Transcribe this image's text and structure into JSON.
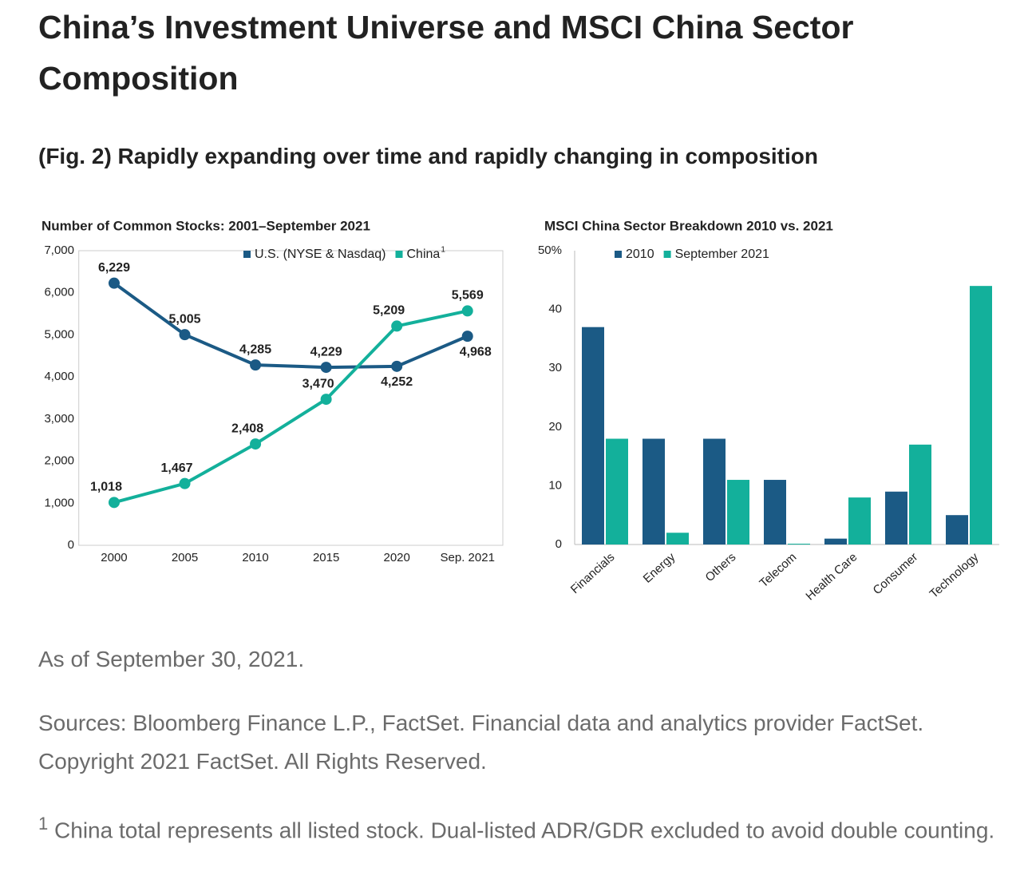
{
  "header": {
    "title": "China’s Investment Universe and MSCI China Sector Composition",
    "subtitle": "(Fig. 2) Rapidly expanding over time and rapidly changing in composition"
  },
  "chart_data": [
    {
      "type": "line",
      "title": "Number of Common Stocks: 2001–September 2021",
      "categories": [
        "2000",
        "2005",
        "2010",
        "2015",
        "2020",
        "Sep. 2021"
      ],
      "series": [
        {
          "name": "U.S. (NYSE & Nasdaq)",
          "color": "#1b5a85",
          "values": [
            6229,
            5005,
            4285,
            4229,
            4252,
            4968
          ],
          "value_labels": [
            "6,229",
            "5,005",
            "4,285",
            "4,229",
            "4,252",
            "4,968"
          ]
        },
        {
          "name": "China",
          "footnote_ref": "1",
          "color": "#13b09b",
          "values": [
            1018,
            1467,
            2408,
            3470,
            5209,
            5569
          ],
          "value_labels": [
            "1,018",
            "1,467",
            "2,408",
            "3,470",
            "5,209",
            "5,569"
          ]
        }
      ],
      "ylim": [
        0,
        7000
      ],
      "yticks": [
        0,
        {
          "value": 1000,
          "label": "1,000"
        },
        {
          "value": 2000,
          "label": "2,000"
        },
        {
          "value": 3000,
          "label": "3,000"
        },
        {
          "value": 4000,
          "label": "4,000"
        },
        {
          "value": 5000,
          "label": "5,000"
        },
        {
          "value": 6000,
          "label": "6,000"
        },
        {
          "value": 7000,
          "label": "7,000"
        }
      ]
    },
    {
      "type": "bar",
      "title": "MSCI China Sector Breakdown 2010 vs. 2021",
      "categories": [
        "Financials",
        "Energy",
        "Others",
        "Telecom",
        "Health Care",
        "Consumer",
        "Technology"
      ],
      "series": [
        {
          "name": "2010",
          "color": "#1b5a85",
          "values": [
            37,
            18,
            18,
            11,
            1,
            9,
            5
          ]
        },
        {
          "name": "September 2021",
          "color": "#13b09b",
          "values": [
            18,
            2,
            11,
            0,
            8,
            17,
            44
          ]
        }
      ],
      "ylim": [
        0,
        50
      ],
      "yticks": [
        0,
        10,
        20,
        30,
        40,
        {
          "value": 50,
          "label": "50%"
        }
      ]
    }
  ],
  "notes": {
    "as_of": "As of September 30, 2021.",
    "sources": "Sources: Bloomberg Finance L.P., FactSet. Financial data and analytics provider FactSet. Copyright 2021 FactSet. All Rights Reserved.",
    "footnote_mark": "1",
    "footnote": "China total represents all listed stock. Dual-listed ADR/GDR excluded to avoid double counting."
  }
}
